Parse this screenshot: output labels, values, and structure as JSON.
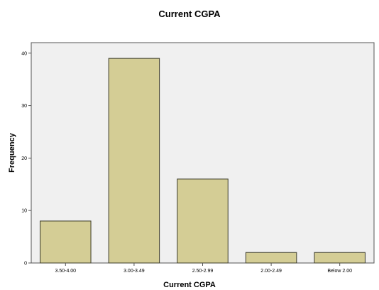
{
  "chart_data": {
    "type": "bar",
    "title": "Current CGPA",
    "xlabel": "Current CGPA",
    "ylabel": "Frequency",
    "categories": [
      "3.50-4.00",
      "3.00-3.49",
      "2.50-2.99",
      "2.00-2.49",
      "Below 2.00"
    ],
    "values": [
      8,
      39,
      16,
      2,
      2
    ],
    "ylim": [
      0,
      42
    ],
    "yticks": [
      0,
      10,
      20,
      30,
      40
    ],
    "grid": false,
    "legend": "none",
    "colors": {
      "bar_fill": "#d4cd95",
      "bar_stroke": "#3a3a2a",
      "plot_bg": "#f0f0f0",
      "frame": "#555555"
    }
  }
}
